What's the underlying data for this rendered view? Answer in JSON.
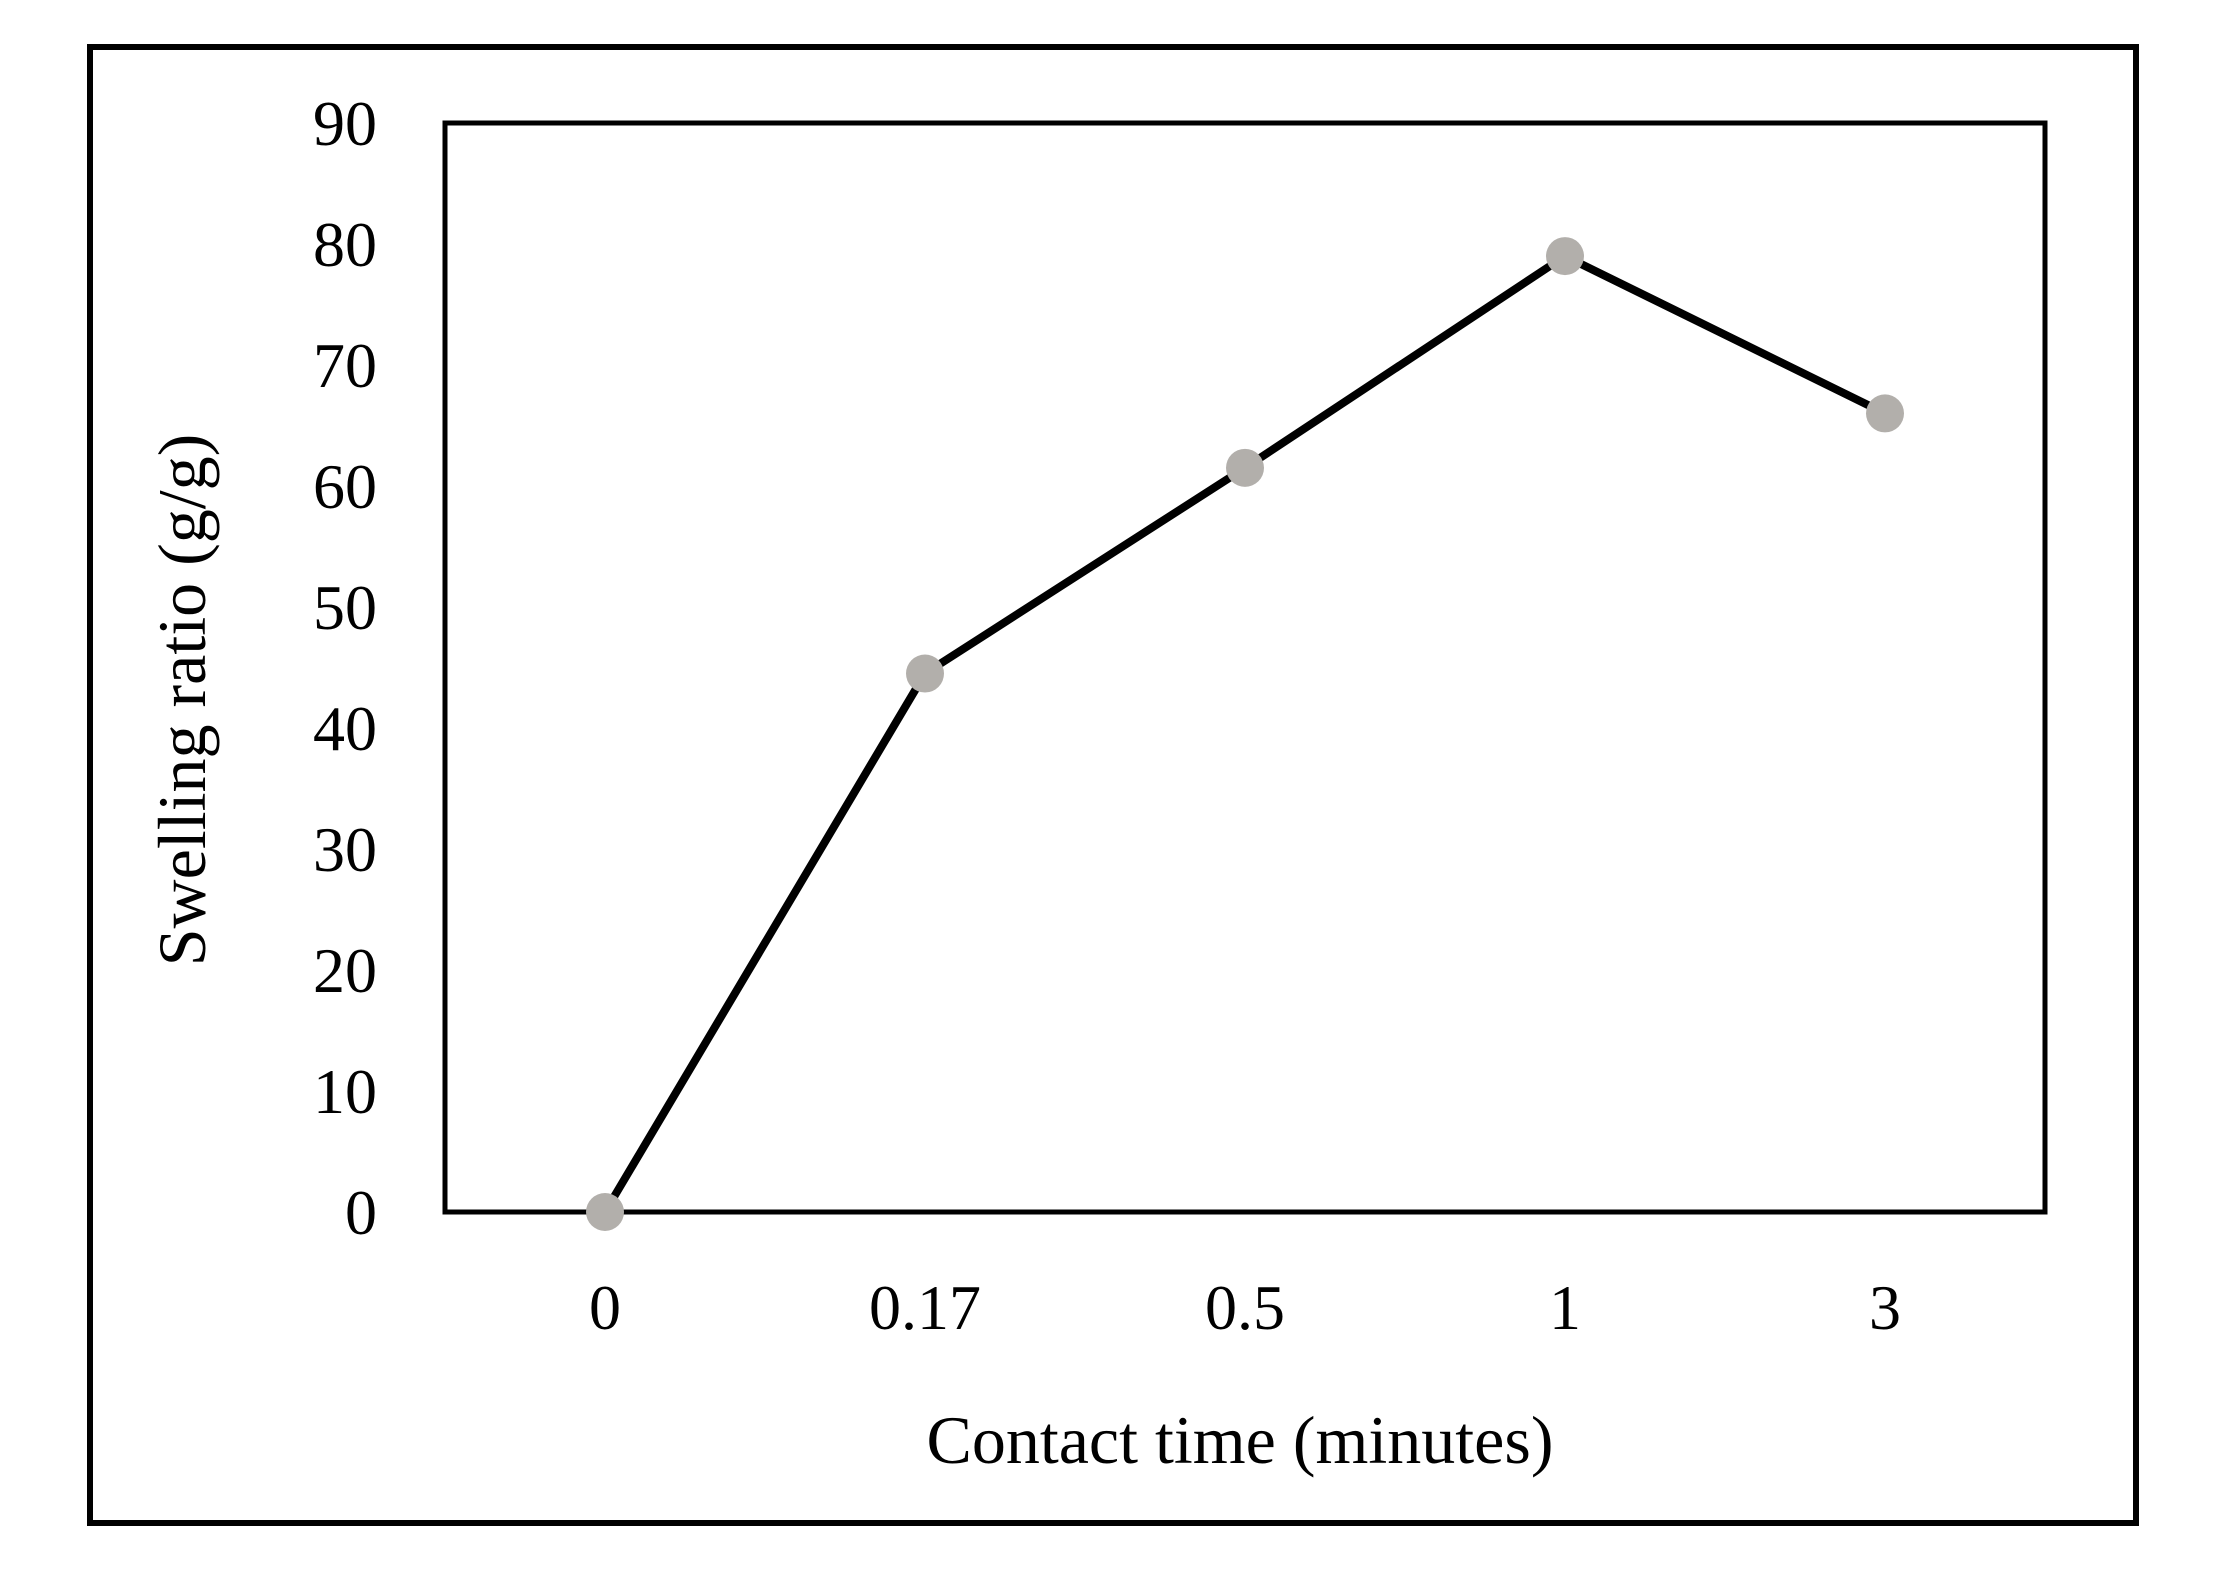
{
  "figure": {
    "background": "#ffffff",
    "border_color": "#000000"
  },
  "chart_data": {
    "type": "line",
    "title": "",
    "xlabel": "Contact time (minutes)",
    "ylabel": "Swelling ratio (g/g)",
    "categories": [
      "0",
      "0.17",
      "0.5",
      "1",
      "3"
    ],
    "x_numeric": [
      0,
      0.17,
      0.5,
      1,
      3
    ],
    "series": [
      {
        "name": "Swelling ratio",
        "values": [
          0,
          44.5,
          61.5,
          79,
          66
        ]
      }
    ],
    "y_ticks": [
      0,
      10,
      20,
      30,
      40,
      50,
      60,
      70,
      80,
      90
    ],
    "y_tick_labels": [
      "0",
      "10",
      "20",
      "30",
      "40",
      "50",
      "60",
      "70",
      "80",
      "90"
    ],
    "ylim": [
      0,
      90
    ],
    "grid": false,
    "legend": false,
    "line_color": "#000000",
    "marker_color": "#b2afab",
    "marker_shape": "circle",
    "plot_border_color": "#000000"
  }
}
